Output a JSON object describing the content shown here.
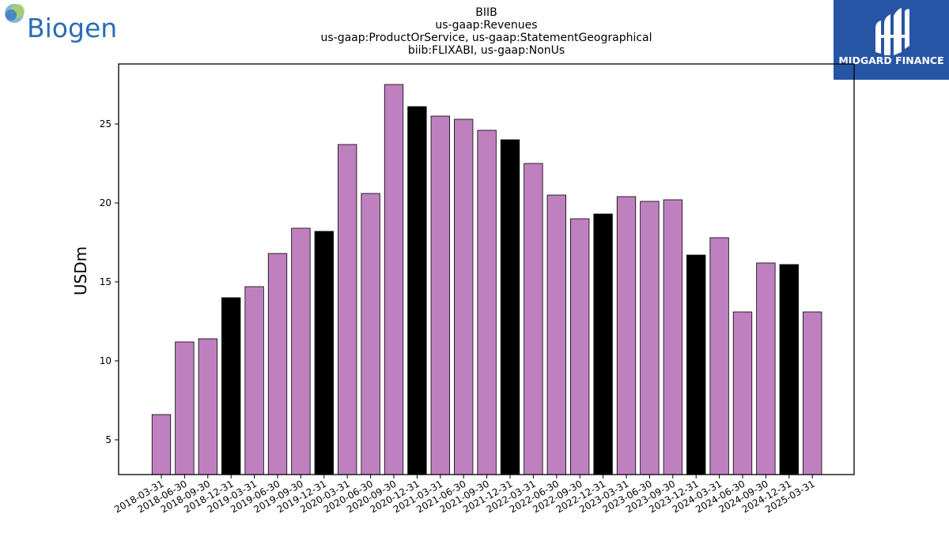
{
  "brand": {
    "company_logo_text": "Biogen",
    "publisher_logo_text": "MIDGARD FINANCE",
    "publisher_bg_color": "#2755a6",
    "company_color": "#2a6db4"
  },
  "chart_data": {
    "type": "bar",
    "title_lines": [
      "BIIB",
      "us-gaap:Revenues",
      "us-gaap:ProductOrService, us-gaap:StatementGeographical",
      "biib:FLIXABI, us-gaap:NonUs"
    ],
    "xlabel": "",
    "ylabel": "USDm",
    "ylim": [
      2.8,
      28.8
    ],
    "yticks": [
      5,
      10,
      15,
      20,
      25
    ],
    "grid": false,
    "colors": {
      "quarter": "#bf80bf",
      "year_end": "#000000"
    },
    "categories": [
      "2018-03-31",
      "2018-06-30",
      "2018-09-30",
      "2018-12-31",
      "2019-03-31",
      "2019-06-30",
      "2019-09-30",
      "2019-12-31",
      "2020-03-31",
      "2020-06-30",
      "2020-09-30",
      "2020-12-31",
      "2021-03-31",
      "2021-06-30",
      "2021-09-30",
      "2021-12-31",
      "2022-03-31",
      "2022-06-30",
      "2022-09-30",
      "2022-12-31",
      "2023-03-31",
      "2023-06-30",
      "2023-09-30",
      "2023-12-31",
      "2024-03-31",
      "2024-06-30",
      "2024-09-30",
      "2024-12-31",
      "2025-03-31"
    ],
    "values": [
      6.6,
      11.2,
      11.4,
      14.0,
      14.7,
      16.8,
      18.4,
      18.2,
      23.7,
      20.6,
      27.5,
      26.1,
      25.5,
      25.3,
      24.6,
      24.0,
      22.5,
      20.5,
      19.0,
      19.3,
      20.4,
      20.1,
      20.2,
      16.7,
      17.8,
      13.1,
      16.2,
      16.1,
      13.1
    ],
    "year_end_flags": [
      false,
      false,
      false,
      true,
      false,
      false,
      false,
      true,
      false,
      false,
      false,
      true,
      false,
      false,
      false,
      true,
      false,
      false,
      false,
      true,
      false,
      false,
      false,
      true,
      false,
      false,
      false,
      true,
      false
    ]
  }
}
